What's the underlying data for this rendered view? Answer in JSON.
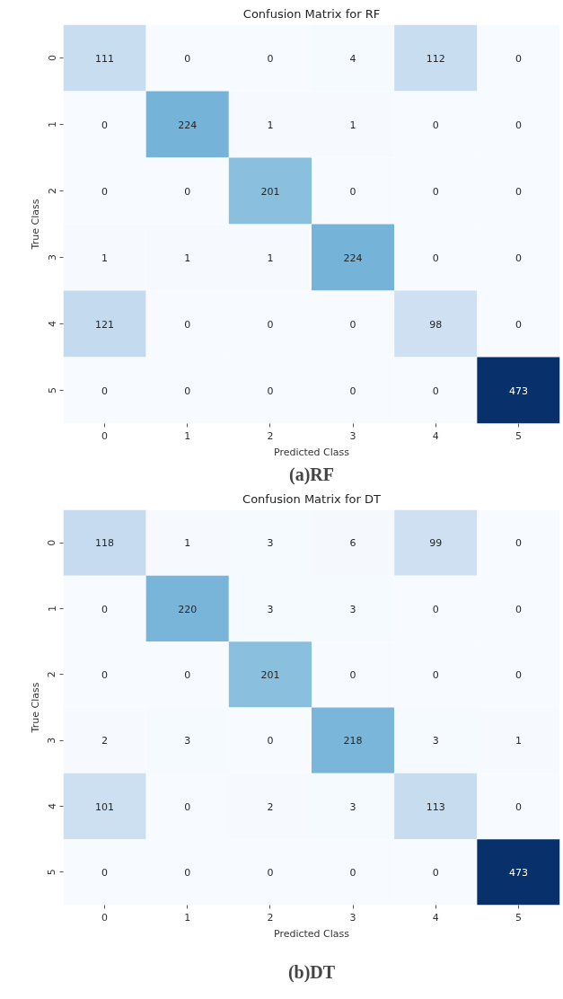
{
  "chart_data": [
    {
      "type": "heatmap",
      "title": "Confusion Matrix for RF",
      "xlabel": "Predicted Class",
      "ylabel": "True Class",
      "categories": [
        "0",
        "1",
        "2",
        "3",
        "4",
        "5"
      ],
      "y_categories": [
        "0",
        "1",
        "2",
        "3",
        "4",
        "5"
      ],
      "cells": [
        [
          111,
          0,
          0,
          4,
          112,
          0
        ],
        [
          0,
          224,
          1,
          1,
          0,
          0
        ],
        [
          0,
          0,
          201,
          0,
          0,
          0
        ],
        [
          1,
          1,
          1,
          224,
          0,
          0
        ],
        [
          121,
          0,
          0,
          0,
          98,
          0
        ],
        [
          0,
          0,
          0,
          0,
          0,
          473
        ]
      ],
      "data_labels": true,
      "annotations": [
        "(a)RF"
      ]
    },
    {
      "type": "heatmap",
      "title": "Confusion Matrix for DT",
      "xlabel": "Predicted Class",
      "ylabel": "True Class",
      "categories": [
        "0",
        "1",
        "2",
        "3",
        "4",
        "5"
      ],
      "y_categories": [
        "0",
        "1",
        "2",
        "3",
        "4",
        "5"
      ],
      "cells": [
        [
          118,
          1,
          3,
          6,
          99,
          0
        ],
        [
          0,
          220,
          3,
          3,
          0,
          0
        ],
        [
          0,
          0,
          201,
          0,
          0,
          0
        ],
        [
          2,
          3,
          0,
          218,
          3,
          1
        ],
        [
          101,
          0,
          2,
          3,
          113,
          0
        ],
        [
          0,
          0,
          0,
          0,
          0,
          473
        ]
      ],
      "data_labels": true,
      "annotations": [
        "(b)DT"
      ]
    }
  ]
}
